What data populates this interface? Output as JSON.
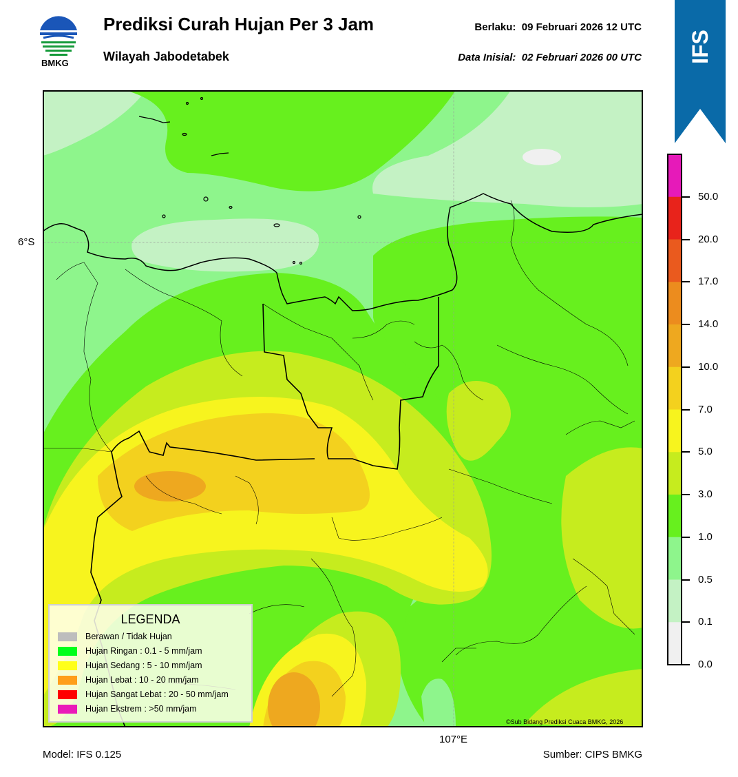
{
  "header": {
    "title": "Prediksi Curah Hujan Per 3 Jam",
    "subtitle": "Wilayah Jabodetabek",
    "valid_time": "Berlaku:  09 Februari 2026 12 UTC",
    "initial_time": "Data Inisial:  02 Februari 2026 00 UTC"
  },
  "logo": {
    "text": "BMKG"
  },
  "banner": {
    "text": "IFS",
    "color": "#0a6aa8"
  },
  "map": {
    "lat_label": "6°S",
    "lon_label": "107°E",
    "credit": "©Sub Bidang Prediksi Cuaca BMKG, 2026"
  },
  "footer": {
    "model": "Model: IFS 0.125",
    "source": "Sumber: CIPS BMKG"
  },
  "colorbar": {
    "labels": [
      "50.0",
      "20.0",
      "17.0",
      "14.0",
      "10.0",
      "7.0",
      "5.0",
      "3.0",
      "1.0",
      "0.5",
      "0.1",
      "0.0"
    ],
    "colors": [
      "#e61ab9",
      "#e8231b",
      "#ea5a1e",
      "#ec8c1e",
      "#eea81f",
      "#f3d11e",
      "#f7f41e",
      "#c6ec1e",
      "#67f01e",
      "#8ef58c",
      "#c4f2c4",
      "#f0f0f0"
    ]
  },
  "legend": {
    "title": "LEGENDA",
    "items": [
      {
        "label": "Berawan / Tidak Hujan",
        "color": "#bdbdbd"
      },
      {
        "label": "Hujan Ringan : 0.1 - 5 mm/jam",
        "color": "#00ff1a"
      },
      {
        "label": "Hujan Sedang : 5 - 10 mm/jam",
        "color": "#ffff1a"
      },
      {
        "label": "Hujan Lebat : 10 - 20 mm/jam",
        "color": "#ff9e1a"
      },
      {
        "label": "Hujan Sangat Lebat : 20 - 50 mm/jam",
        "color": "#ff0000"
      },
      {
        "label": "Hujan Ekstrem : >50 mm/jam",
        "color": "#ea1ab9"
      }
    ]
  }
}
